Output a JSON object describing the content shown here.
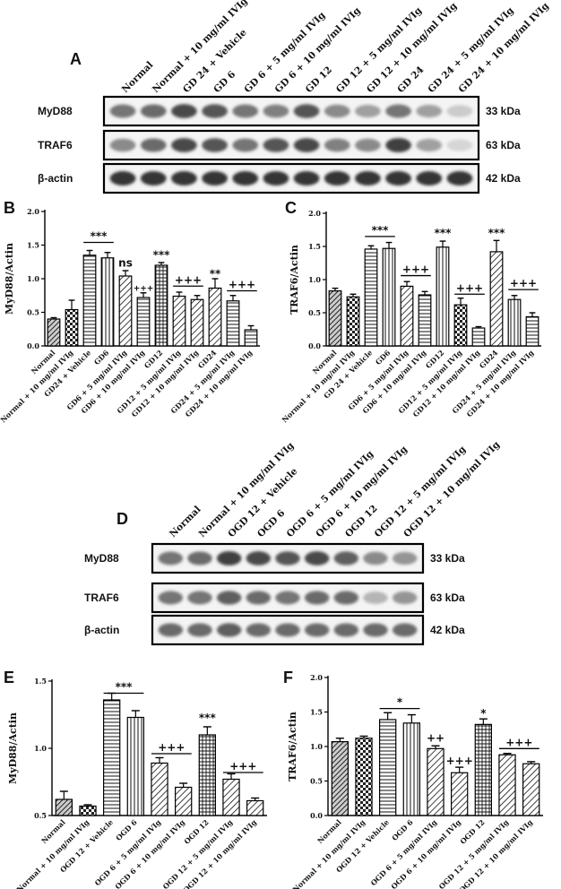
{
  "panels": {
    "A": "A",
    "B": "B",
    "C": "C",
    "D": "D",
    "E": "E",
    "F": "F"
  },
  "blot_A": {
    "lanes": [
      "Normal",
      "Normal + 10 mg/ml IVIg",
      "GD 24 + Vehicle",
      "GD 6",
      "GD 6 + 5 mg/ml IVIg",
      "GD 6 + 10 mg/ml IVIg",
      "GD 12",
      "GD 12 + 5 mg/ml  IVIg",
      "GD 12 + 10 mg/ml IVIg",
      "GD 24",
      "GD 24 + 5 mg/ml IVIg",
      "GD 24 + 10 mg/ml IVIg"
    ],
    "rows": [
      {
        "label": "MyD88",
        "kda": "33 kDa",
        "intensity": [
          0.55,
          0.6,
          0.75,
          0.7,
          0.55,
          0.5,
          0.7,
          0.45,
          0.35,
          0.55,
          0.35,
          0.15
        ]
      },
      {
        "label": "TRAF6",
        "kda": "63 kDa",
        "intensity": [
          0.45,
          0.6,
          0.75,
          0.7,
          0.55,
          0.7,
          0.75,
          0.5,
          0.45,
          0.8,
          0.35,
          0.1
        ]
      },
      {
        "label": "β-actin",
        "kda": "42 kDa",
        "intensity": [
          0.85,
          0.85,
          0.85,
          0.85,
          0.85,
          0.85,
          0.85,
          0.85,
          0.85,
          0.85,
          0.85,
          0.85
        ]
      }
    ]
  },
  "blot_D": {
    "lanes": [
      "Normal",
      "Normal + 10 mg/ml IVIg",
      "OGD 12 + Vehicle",
      "OGD 6",
      "OGD 6 + 5 mg/ml IVIg",
      "OGD 6 + 10 mg/ml IVIg",
      "OGD 12",
      "OGD 12 + 5 mg/ml IVIg",
      "OGD 12 + 10 mg/ml IVIg"
    ],
    "rows": [
      {
        "label": "MyD88",
        "kda": "33 kDa",
        "intensity": [
          0.55,
          0.6,
          0.8,
          0.75,
          0.7,
          0.75,
          0.65,
          0.45,
          0.4
        ]
      },
      {
        "label": "TRAF6",
        "kda": "63 kDa",
        "intensity": [
          0.55,
          0.55,
          0.65,
          0.6,
          0.55,
          0.6,
          0.6,
          0.25,
          0.4
        ]
      },
      {
        "label": "β-actin",
        "kda": "42 kDa",
        "intensity": [
          0.6,
          0.6,
          0.65,
          0.6,
          0.6,
          0.6,
          0.6,
          0.6,
          0.6
        ]
      }
    ]
  },
  "chart_data": [
    {
      "panel": "B",
      "type": "bar",
      "ylabel": "MyD88/Actin",
      "ylim": [
        0,
        2.0
      ],
      "yticks": [
        "0.0",
        "0.5",
        "1.0",
        "1.5",
        "2.0"
      ],
      "categories": [
        "Normal",
        "Normal + 10 mg/ml IVIg",
        "GD24 + Vehicle",
        "GD6",
        "GD6 + 5 mg/ml IVIg",
        "GD6 + 10 mg/ml IVIg",
        "GD12",
        "GD12 + 5 mg/ml IVIg",
        "GD12 + 10 mg/ml IVIg",
        "GD24",
        "GD24 + 5 mg/ml IVIg",
        "GD24 + 10 mg/ml IVIg"
      ],
      "values": [
        0.4,
        0.54,
        1.35,
        1.31,
        1.04,
        0.72,
        1.2,
        0.74,
        0.69,
        0.86,
        0.67,
        0.24
      ],
      "errors": [
        0.02,
        0.14,
        0.07,
        0.08,
        0.08,
        0.07,
        0.04,
        0.06,
        0.06,
        0.14,
        0.08,
        0.06
      ],
      "patterns": [
        "hatch-dense",
        "checker",
        "hlines",
        "vlines",
        "diag",
        "hlines",
        "grid",
        "diag",
        "diag",
        "diag",
        "hlines",
        "hlines"
      ],
      "annotations": [
        {
          "text": "***",
          "from": 2,
          "to": 3,
          "y": 1.54,
          "line": true
        },
        {
          "text": "ns",
          "from": 4,
          "to": 4,
          "y": 1.18,
          "line": false
        },
        {
          "text": "+++",
          "from": 5,
          "to": 5,
          "y": 0.82,
          "line": false,
          "small": true
        },
        {
          "text": "***",
          "from": 6,
          "to": 6,
          "y": 1.3,
          "line": false
        },
        {
          "text": "+++",
          "from": 7,
          "to": 8,
          "y": 0.89,
          "line": true
        },
        {
          "text": "**",
          "from": 9,
          "to": 9,
          "y": 1.02,
          "line": false
        },
        {
          "text": "+++",
          "from": 10,
          "to": 11,
          "y": 0.82,
          "line": true
        }
      ]
    },
    {
      "panel": "C",
      "type": "bar",
      "ylabel": "TRAF6/Actin",
      "ylim": [
        0,
        2.0
      ],
      "yticks": [
        "0.0",
        "0.5",
        "1.0",
        "1.5",
        "2.0"
      ],
      "categories": [
        "Normal",
        "Normal + 10 mg/ml IVIg",
        "GD 24 + Vehicle",
        "GD6",
        "GD6 + 5 mg/ml IVIg",
        "GD6 + 10 mg/ml IVIg",
        "GD12",
        "GD12 + 5 mg/ml IVIg",
        "GD12 + 10 mg/ml IVIg",
        "GD24",
        "GD24 + 5 mg/ml IVIg",
        "GD24 + 10 mg/ml IVIg"
      ],
      "values": [
        0.83,
        0.74,
        1.46,
        1.47,
        0.9,
        0.77,
        1.49,
        0.62,
        0.27,
        1.42,
        0.7,
        0.44
      ],
      "errors": [
        0.04,
        0.04,
        0.05,
        0.09,
        0.07,
        0.05,
        0.09,
        0.1,
        0.02,
        0.17,
        0.06,
        0.06
      ],
      "patterns": [
        "hatch-dense",
        "checker",
        "hlines",
        "vlines",
        "diag",
        "hlines",
        "vlines",
        "checker",
        "hlines",
        "diag",
        "vlines",
        "hlines"
      ],
      "annotations": [
        {
          "text": "***",
          "from": 2,
          "to": 3,
          "y": 1.65,
          "line": true
        },
        {
          "text": "+++",
          "from": 4,
          "to": 5,
          "y": 1.06,
          "line": true
        },
        {
          "text": "***",
          "from": 6,
          "to": 6,
          "y": 1.65,
          "line": false
        },
        {
          "text": "+++",
          "from": 7,
          "to": 8,
          "y": 0.78,
          "line": true
        },
        {
          "text": "***",
          "from": 9,
          "to": 9,
          "y": 1.65,
          "line": false
        },
        {
          "text": "+++",
          "from": 10,
          "to": 11,
          "y": 0.85,
          "line": true
        }
      ]
    },
    {
      "panel": "E",
      "type": "bar",
      "ylabel": "MyD88/Actin",
      "ylim": [
        0.5,
        1.5
      ],
      "yticks": [
        "0.5",
        "1.0",
        "1.5"
      ],
      "categories": [
        "Normal",
        "Normal + 10 mg/ml IVIg",
        "OGD 12 + Vehicle",
        "OGD 6",
        "OGD 6 + 5 mg/ml IVIg",
        "OGD 6 + 10 mg/ml IVIg",
        "OGD 12",
        "OGD 12 + 5 mg/ml IVIg",
        "OGD 12 + 10 mg/ml IVIg"
      ],
      "values": [
        0.62,
        0.57,
        1.36,
        1.23,
        0.89,
        0.71,
        1.1,
        0.77,
        0.61
      ],
      "errors": [
        0.06,
        0.01,
        0.05,
        0.05,
        0.04,
        0.03,
        0.06,
        0.04,
        0.02
      ],
      "patterns": [
        "hatch-dense",
        "checker",
        "hlines",
        "vlines",
        "diag",
        "diag",
        "grid",
        "diag",
        "diag"
      ],
      "annotations": [
        {
          "text": "***",
          "from": 2,
          "to": 3,
          "y": 1.41,
          "line": true
        },
        {
          "text": "+++",
          "from": 4,
          "to": 5,
          "y": 0.96,
          "line": true
        },
        {
          "text": "***",
          "from": 6,
          "to": 6,
          "y": 1.2,
          "line": false
        },
        {
          "text": "+++",
          "from": 7,
          "to": 8,
          "y": 0.82,
          "line": true
        }
      ]
    },
    {
      "panel": "F",
      "type": "bar",
      "ylabel": "TRAF6/Actin",
      "ylim": [
        0,
        2.0
      ],
      "yticks": [
        "0.0",
        "0.5",
        "1.0",
        "1.5",
        "2.0"
      ],
      "categories": [
        "Normal",
        "Normal + 10 mg/ml IVIg",
        "OGD 12 + Vehicle",
        "OGD 6",
        "OGD 6 + 5 mg/ml IVIg",
        "OGD 6 + 10 mg/ml IVIg",
        "OGD 12",
        "OGD 12 + 5 mg/ml IVIg",
        "OGD 12 + 10 mg/ml IVIg"
      ],
      "values": [
        1.07,
        1.12,
        1.39,
        1.34,
        0.97,
        0.62,
        1.32,
        0.88,
        0.75
      ],
      "errors": [
        0.05,
        0.03,
        0.1,
        0.12,
        0.04,
        0.08,
        0.08,
        0.02,
        0.03
      ],
      "patterns": [
        "hatch-dense",
        "checker",
        "hlines",
        "vlines",
        "diag",
        "diag",
        "grid",
        "diag",
        "diag"
      ],
      "annotations": [
        {
          "text": "*",
          "from": 2,
          "to": 3,
          "y": 1.55,
          "line": true
        },
        {
          "text": "++",
          "from": 4,
          "to": 4,
          "y": 1.07,
          "line": false
        },
        {
          "text": "+++",
          "from": 5,
          "to": 5,
          "y": 0.74,
          "line": false
        },
        {
          "text": "*",
          "from": 6,
          "to": 6,
          "y": 1.43,
          "line": false
        },
        {
          "text": "+++",
          "from": 7,
          "to": 8,
          "y": 0.97,
          "line": true
        }
      ]
    }
  ]
}
